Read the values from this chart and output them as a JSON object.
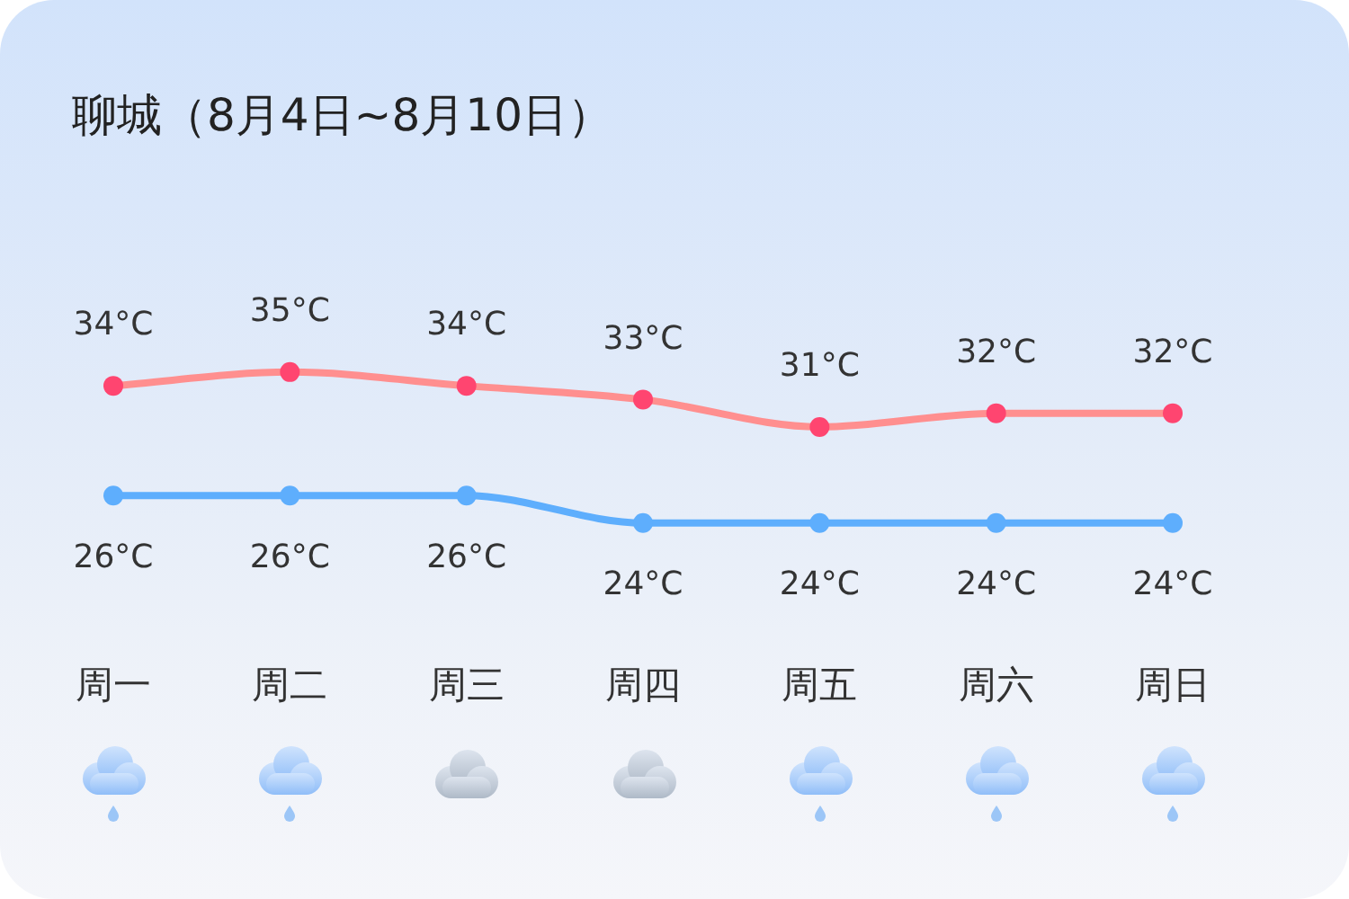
{
  "chart_data": {
    "type": "line",
    "title": "聊城（8月4日~8月10日）",
    "categories": [
      "周一",
      "周二",
      "周三",
      "周四",
      "周五",
      "周六",
      "周日"
    ],
    "series": [
      {
        "color": "#ff8f8f",
        "colors": [
          "#ff4570",
          "#ff4570",
          "#ff4570",
          "#ff4570",
          "#ff4570",
          "#ff4570",
          "#ff4570"
        ],
        "values": [
          34,
          35,
          34,
          33,
          31,
          32,
          32
        ],
        "value_labels": [
          "34°C",
          "35°C",
          "34°C",
          "33°C",
          "31°C",
          "32°C",
          "32°C"
        ]
      },
      {
        "color": "#5eaefd",
        "values": [
          26,
          26,
          26,
          24,
          24,
          24,
          24
        ],
        "value_labels": [
          "26°C",
          "26°C",
          "26°C",
          "24°C",
          "24°C",
          "24°C",
          "24°C"
        ]
      }
    ],
    "marker": "circle",
    "line_style": "solid",
    "grid": false,
    "legend": false,
    "tick_labels": "x"
  }
}
